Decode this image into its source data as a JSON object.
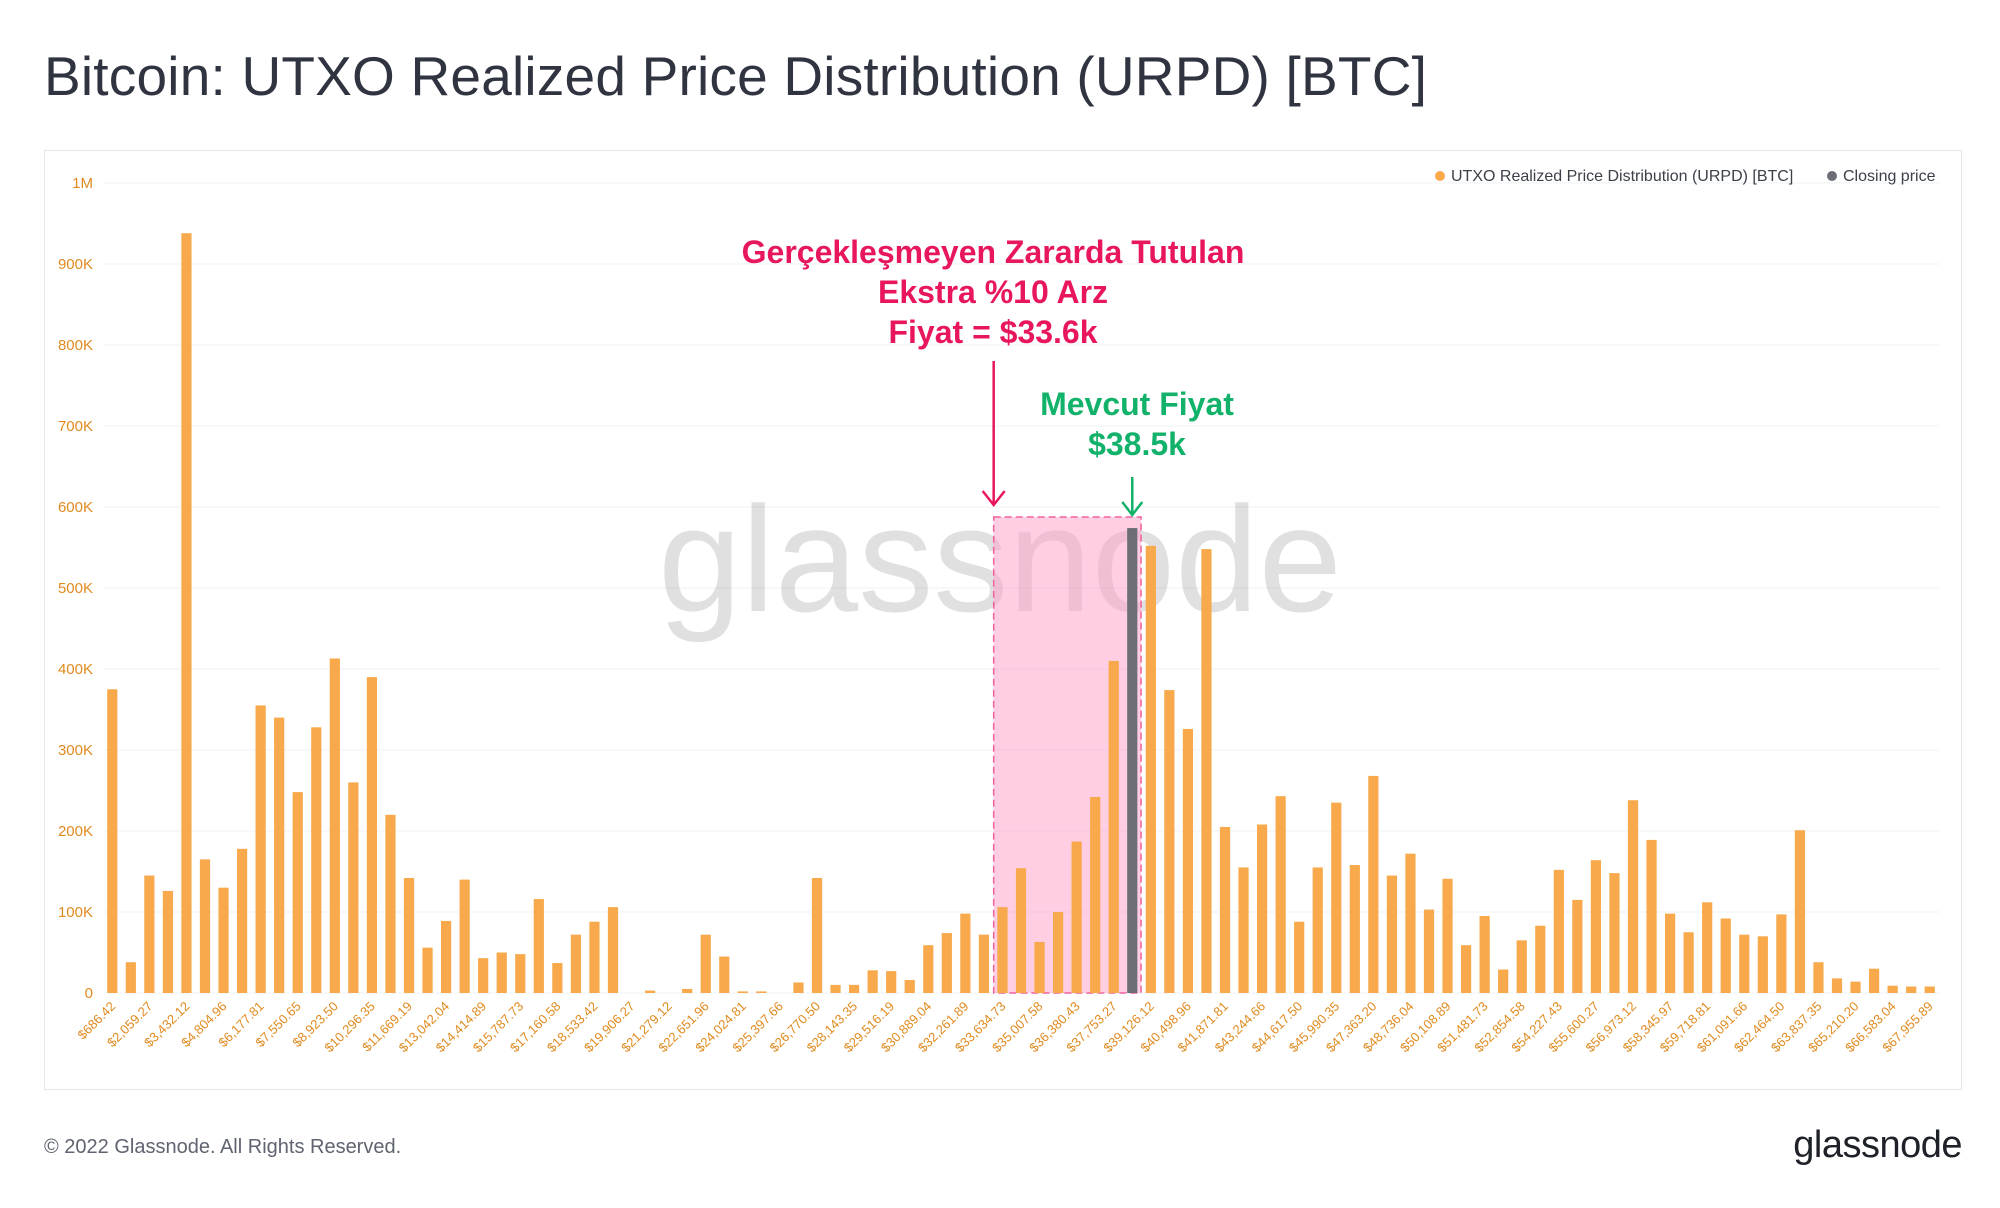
{
  "header": {
    "title": "Bitcoin: UTXO Realized Price Distribution (URPD) [BTC]"
  },
  "footer": {
    "copyright": "© 2022 Glassnode. All Rights Reserved.",
    "logo": "glassnode"
  },
  "watermark": "glassnode",
  "colors": {
    "bar": "#f7a94b",
    "closing": "#6b6e75",
    "highlight": "#ff9ec8",
    "highlight_border": "#f0609f",
    "annotation_red": "#e8175d",
    "annotation_green": "#13b26b",
    "axis_text": "#e08a1f",
    "grid": "#eef0f3"
  },
  "annotations": {
    "supply_lines": [
      "Gerçekleşmeyen Zararda Tutulan",
      "Ekstra %10 Arz",
      "Fiyat = $33.6k"
    ],
    "current_lines": [
      "Mevcut Fiyat",
      "$38.5k"
    ]
  },
  "chart_data": {
    "type": "bar",
    "title": "Bitcoin: UTXO Realized Price Distribution (URPD) [BTC]",
    "xlabel": "",
    "ylabel": "",
    "ylim": [
      0,
      1000000
    ],
    "yticks": [
      0,
      100000,
      200000,
      300000,
      400000,
      500000,
      600000,
      700000,
      800000,
      900000,
      1000000
    ],
    "ytick_labels": [
      "0",
      "100K",
      "200K",
      "300K",
      "400K",
      "500K",
      "600K",
      "700K",
      "800K",
      "900K",
      "1M"
    ],
    "legend": {
      "placement": "top-right",
      "items": [
        {
          "label": "UTXO Realized Price Distribution (URPD) [BTC]",
          "color": "#f7a94b"
        },
        {
          "label": "Closing price",
          "color": "#6b6e75"
        }
      ]
    },
    "bin_start": 686.42,
    "bin_width": 686.45,
    "xtick_labels": [
      "$686.42",
      "$2,059.27",
      "$3,432.12",
      "$4,804.96",
      "$6,177.81",
      "$7,550.65",
      "$8,923.50",
      "$10,296.35",
      "$11,669.19",
      "$13,042.04",
      "$14,414.89",
      "$15,787.73",
      "$17,160.58",
      "$18,533.42",
      "$19,906.27",
      "$21,279.12",
      "$22,651.96",
      "$24,024.81",
      "$25,397.66",
      "$26,770.50",
      "$28,143.35",
      "$29,516.19",
      "$30,889.04",
      "$32,261.89",
      "$33,634.73",
      "$35,007.58",
      "$36,380.43",
      "$37,753.27",
      "$39,126.12",
      "$40,498.96",
      "$41,871.81",
      "$43,244.66",
      "$44,617.50",
      "$45,990.35",
      "$47,363.20",
      "$48,736.04",
      "$50,108.89",
      "$51,481.73",
      "$52,854.58",
      "$54,227.43",
      "$55,600.27",
      "$56,973.12",
      "$58,345.97",
      "$59,718.81",
      "$61,091.66",
      "$62,464.50",
      "$63,837.35",
      "$65,210.20",
      "$66,583.04",
      "$67,955.89"
    ],
    "values": [
      375000,
      38000,
      145000,
      126000,
      938000,
      165000,
      130000,
      178000,
      355000,
      340000,
      248000,
      328000,
      413000,
      260000,
      390000,
      220000,
      142000,
      56000,
      89000,
      140000,
      43000,
      50000,
      48000,
      116000,
      37000,
      72000,
      88000,
      106000,
      0,
      3000,
      0,
      5000,
      72000,
      45000,
      2000,
      2000,
      0,
      13000,
      142000,
      10000,
      10000,
      28000,
      27000,
      16000,
      59000,
      74000,
      98000,
      72000,
      106000,
      154000,
      63000,
      100000,
      187000,
      242000,
      410000,
      574000,
      552000,
      374000,
      326000,
      548000,
      205000,
      155000,
      208000,
      243000,
      88000,
      155000,
      235000,
      158000,
      268000,
      145000,
      172000,
      103000,
      141000,
      59000,
      95000,
      29000,
      65000,
      83000,
      152000,
      115000,
      164000,
      148000,
      238000,
      189000,
      98000,
      75000,
      112000,
      92000,
      72000,
      70000,
      97000,
      201000,
      38000,
      18000,
      14000,
      30000,
      9000,
      8000,
      8000
    ],
    "closing_price_index": 55,
    "highlight_range": {
      "from": "$33,634.73",
      "to": "$39,126.12",
      "start_index": 48,
      "end_index": 55
    }
  }
}
